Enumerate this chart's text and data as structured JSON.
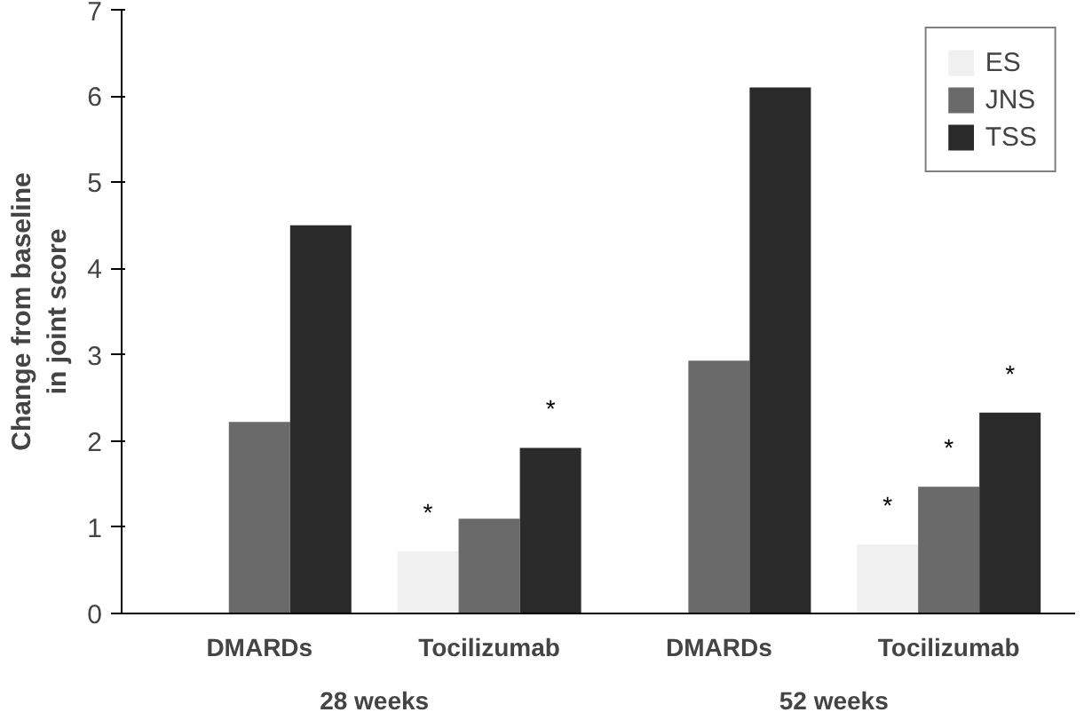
{
  "chart_data": {
    "type": "bar",
    "ylabel": "Change from baseline\nin joint score",
    "categories": [
      "DMARDs",
      "Tocilizumab",
      "DMARDs",
      "Tocilizumab"
    ],
    "series": [
      {
        "name": "ES",
        "color": "#f0f0f0",
        "values": [
          null,
          0.72,
          null,
          0.8
        ],
        "value_labels": [
          null,
          "*",
          null,
          "*"
        ]
      },
      {
        "name": "JNS",
        "color": "#6a6a6a",
        "values": [
          2.22,
          1.1,
          2.93,
          1.47
        ],
        "value_labels": [
          null,
          null,
          null,
          "*"
        ]
      },
      {
        "name": "TSS",
        "color": "#2a2a2a",
        "values": [
          4.5,
          1.92,
          6.1,
          2.33
        ],
        "value_labels": [
          null,
          "*",
          null,
          "*"
        ]
      }
    ],
    "ylim": [
      0,
      7
    ],
    "yticks": [
      0,
      1,
      2,
      3,
      4,
      5,
      6,
      7
    ],
    "grid": false,
    "legend": "top right",
    "annotations": [
      "28 weeks",
      "52 weeks"
    ]
  }
}
